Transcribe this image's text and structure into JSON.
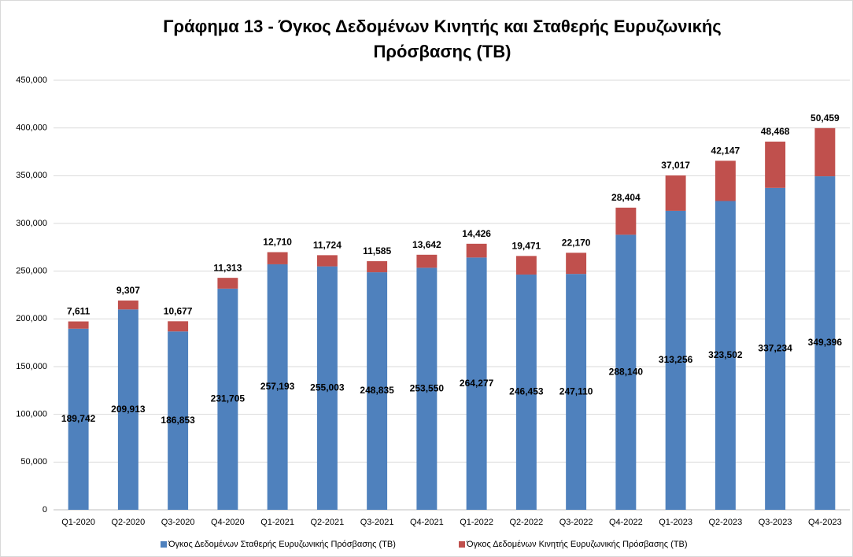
{
  "chart_data": {
    "type": "stacked_bar",
    "title": "Γράφημα 13 - Όγκος Δεδομένων Κινητής και Σταθερής Ευρυζωνικής Πρόσβασης (TB)",
    "categories": [
      "Q1-2020",
      "Q2-2020",
      "Q3-2020",
      "Q4-2020",
      "Q1-2021",
      "Q2-2021",
      "Q3-2021",
      "Q4-2021",
      "Q1-2022",
      "Q2-2022",
      "Q3-2022",
      "Q4-2022",
      "Q1-2023",
      "Q2-2023",
      "Q3-2023",
      "Q4-2023"
    ],
    "series": [
      {
        "name": "Όγκος Δεδομένων Σταθερής Ευρυζωνικής Πρόσβασης (TB)",
        "color": "#4f81bd",
        "values": [
          189742,
          209913,
          186853,
          231705,
          257193,
          255003,
          248835,
          253550,
          264277,
          246453,
          247110,
          288140,
          313256,
          323502,
          337234,
          349396
        ],
        "value_labels": [
          "189,742",
          "209,913",
          "186,853",
          "231,705",
          "257,193",
          "255,003",
          "248,835",
          "253,550",
          "264,277",
          "246,453",
          "247,110",
          "288,140",
          "313,256",
          "323,502",
          "337,234",
          "349,396"
        ]
      },
      {
        "name": "Όγκος Δεδομένων Κινητής Ευρυζωνικής Πρόσβασης (TB)",
        "color": "#c0504d",
        "values": [
          7611,
          9307,
          10677,
          11313,
          12710,
          11724,
          11585,
          13642,
          14426,
          19471,
          22170,
          28404,
          37017,
          42147,
          48468,
          50459
        ],
        "value_labels": [
          "7,611",
          "9,307",
          "10,677",
          "11,313",
          "12,710",
          "11,724",
          "11,585",
          "13,642",
          "14,426",
          "19,471",
          "22,170",
          "28,404",
          "37,017",
          "42,147",
          "48,468",
          "50,459"
        ]
      }
    ],
    "ylim": [
      0,
      450000
    ],
    "yticks": [
      0,
      {
        "value": 50000,
        "label": "50,000"
      },
      {
        "value": 100000,
        "label": "100,000"
      },
      {
        "value": 150000,
        "label": "150,000"
      },
      {
        "value": 200000,
        "label": "200,000"
      },
      {
        "value": 250000,
        "label": "250,000"
      },
      {
        "value": 300000,
        "label": "300,000"
      },
      {
        "value": 350000,
        "label": "350,000"
      },
      {
        "value": 400000,
        "label": "400,000"
      },
      {
        "value": 450000,
        "label": "450,000"
      }
    ],
    "grid": true,
    "legend": "bottom"
  }
}
